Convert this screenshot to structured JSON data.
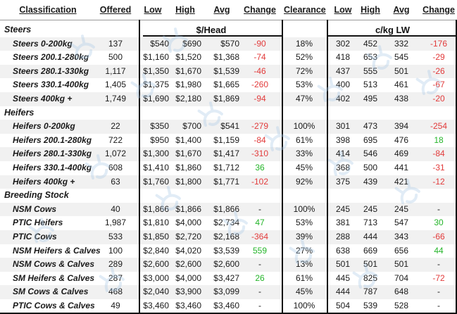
{
  "headers": {
    "classification": "Classification",
    "offered": "Offered",
    "low": "Low",
    "high": "High",
    "avg": "Avg",
    "change": "Change",
    "clearance": "Clearance",
    "low2": "Low",
    "high2": "High",
    "avg2": "Avg",
    "change2": "Change"
  },
  "units": {
    "head": "$/Head",
    "ckg": "c/kg LW"
  },
  "colors": {
    "negative": "#e23b3b",
    "positive": "#25b52a",
    "shade": "#f1f1f1"
  },
  "sections": [
    {
      "title": "Steers",
      "rows": [
        {
          "label": "Steers 0-200kg",
          "offered": "137",
          "low": "$540",
          "high": "$690",
          "avg": "$570",
          "change": "-90",
          "clearance": "18%",
          "ck_low": "302",
          "ck_high": "452",
          "ck_avg": "332",
          "ck_change": "-176"
        },
        {
          "label": "Steers 200.1-280kg",
          "offered": "500",
          "low": "$1,160",
          "high": "$1,520",
          "avg": "$1,368",
          "change": "-74",
          "clearance": "52%",
          "ck_low": "418",
          "ck_high": "653",
          "ck_avg": "545",
          "ck_change": "-29"
        },
        {
          "label": "Steers 280.1-330kg",
          "offered": "1,117",
          "low": "$1,350",
          "high": "$1,670",
          "avg": "$1,539",
          "change": "-46",
          "clearance": "72%",
          "ck_low": "437",
          "ck_high": "555",
          "ck_avg": "501",
          "ck_change": "-26"
        },
        {
          "label": "Steers 330.1-400kg",
          "offered": "1,405",
          "low": "$1,375",
          "high": "$1,980",
          "avg": "$1,665",
          "change": "-260",
          "clearance": "53%",
          "ck_low": "400",
          "ck_high": "513",
          "ck_avg": "461",
          "ck_change": "-67"
        },
        {
          "label": "Steers 400kg +",
          "offered": "1,749",
          "low": "$1,690",
          "high": "$2,180",
          "avg": "$1,869",
          "change": "-94",
          "clearance": "47%",
          "ck_low": "402",
          "ck_high": "495",
          "ck_avg": "438",
          "ck_change": "-20"
        }
      ]
    },
    {
      "title": "Heifers",
      "rows": [
        {
          "label": "Heifers 0-200kg",
          "offered": "22",
          "low": "$350",
          "high": "$700",
          "avg": "$541",
          "change": "-279",
          "clearance": "100%",
          "ck_low": "301",
          "ck_high": "473",
          "ck_avg": "394",
          "ck_change": "-254"
        },
        {
          "label": "Heifers 200.1-280kg",
          "offered": "722",
          "low": "$950",
          "high": "$1,400",
          "avg": "$1,159",
          "change": "-84",
          "clearance": "61%",
          "ck_low": "398",
          "ck_high": "695",
          "ck_avg": "476",
          "ck_change": "18"
        },
        {
          "label": "Heifers 280.1-330kg",
          "offered": "1,072",
          "low": "$1,300",
          "high": "$1,670",
          "avg": "$1,417",
          "change": "-310",
          "clearance": "33%",
          "ck_low": "414",
          "ck_high": "546",
          "ck_avg": "469",
          "ck_change": "-84"
        },
        {
          "label": "Heifers 330.1-400kg",
          "offered": "608",
          "low": "$1,410",
          "high": "$1,860",
          "avg": "$1,712",
          "change": "36",
          "clearance": "45%",
          "ck_low": "368",
          "ck_high": "500",
          "ck_avg": "441",
          "ck_change": "-31"
        },
        {
          "label": "Heifers 400kg +",
          "offered": "63",
          "low": "$1,760",
          "high": "$1,800",
          "avg": "$1,771",
          "change": "-102",
          "clearance": "92%",
          "ck_low": "375",
          "ck_high": "439",
          "ck_avg": "421",
          "ck_change": "-12"
        }
      ]
    },
    {
      "title": "Breeding Stock",
      "rows": [
        {
          "label": "NSM Cows",
          "offered": "40",
          "low": "$1,866",
          "high": "$1,866",
          "avg": "$1,866",
          "change": "-",
          "clearance": "100%",
          "ck_low": "245",
          "ck_high": "245",
          "ck_avg": "245",
          "ck_change": "-"
        },
        {
          "label": "PTIC Heifers",
          "offered": "1,987",
          "low": "$1,810",
          "high": "$4,000",
          "avg": "$2,734",
          "change": "47",
          "clearance": "53%",
          "ck_low": "381",
          "ck_high": "713",
          "ck_avg": "547",
          "ck_change": "30"
        },
        {
          "label": "PTIC Cows",
          "offered": "533",
          "low": "$1,850",
          "high": "$2,720",
          "avg": "$2,168",
          "change": "-364",
          "clearance": "39%",
          "ck_low": "288",
          "ck_high": "444",
          "ck_avg": "343",
          "ck_change": "-66"
        },
        {
          "label": "NSM Heifers & Calves",
          "offered": "100",
          "low": "$2,840",
          "high": "$4,020",
          "avg": "$3,539",
          "change": "559",
          "clearance": "27%",
          "ck_low": "638",
          "ck_high": "669",
          "ck_avg": "656",
          "ck_change": "44"
        },
        {
          "label": "NSM Cows & Calves",
          "offered": "289",
          "low": "$2,600",
          "high": "$2,600",
          "avg": "$2,600",
          "change": "-",
          "clearance": "13%",
          "ck_low": "501",
          "ck_high": "501",
          "ck_avg": "501",
          "ck_change": "-"
        },
        {
          "label": "SM Heifers & Calves",
          "offered": "287",
          "low": "$3,000",
          "high": "$4,000",
          "avg": "$3,427",
          "change": "26",
          "clearance": "61%",
          "ck_low": "445",
          "ck_high": "825",
          "ck_avg": "704",
          "ck_change": "-72"
        },
        {
          "label": "SM Cows & Calves",
          "offered": "468",
          "low": "$2,040",
          "high": "$3,900",
          "avg": "$3,099",
          "change": "-",
          "clearance": "45%",
          "ck_low": "444",
          "ck_high": "787",
          "ck_avg": "648",
          "ck_change": "-"
        },
        {
          "label": "PTIC Cows & Calves",
          "offered": "49",
          "low": "$3,460",
          "high": "$3,460",
          "avg": "$3,460",
          "change": "-",
          "clearance": "100%",
          "ck_low": "504",
          "ck_high": "539",
          "ck_avg": "528",
          "ck_change": "-"
        }
      ]
    }
  ]
}
